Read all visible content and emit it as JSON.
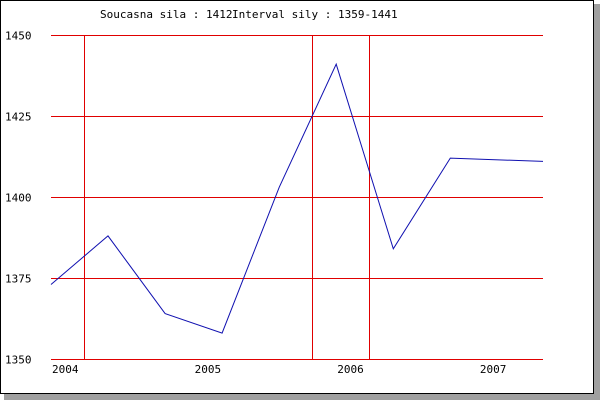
{
  "chart_data": {
    "type": "line",
    "title_label": "Soucasna sila : 1412",
    "title_interval": "Interval sily : 1359-1441",
    "ylim": [
      1350,
      1450
    ],
    "y_ticks": [
      1450,
      1425,
      1400,
      1375,
      1350
    ],
    "x_tick_labels": [
      "2004",
      "2005",
      "2006",
      "2007"
    ],
    "x_tick_positions": [
      2004.0,
      2005.0,
      2006.0,
      2007.0
    ],
    "vertical_grid_x": [
      2004.13,
      2005.73,
      2006.13
    ],
    "xlim": [
      2003.9,
      2007.35
    ],
    "grid": true,
    "series": [
      {
        "color": "#1010b0",
        "points": [
          [
            2003.9,
            1373
          ],
          [
            2004.3,
            1388
          ],
          [
            2004.7,
            1364
          ],
          [
            2005.1,
            1358
          ],
          [
            2005.5,
            1403
          ],
          [
            2005.9,
            1441
          ],
          [
            2006.3,
            1384
          ],
          [
            2006.7,
            1412
          ],
          [
            2007.35,
            1411
          ]
        ]
      }
    ]
  }
}
